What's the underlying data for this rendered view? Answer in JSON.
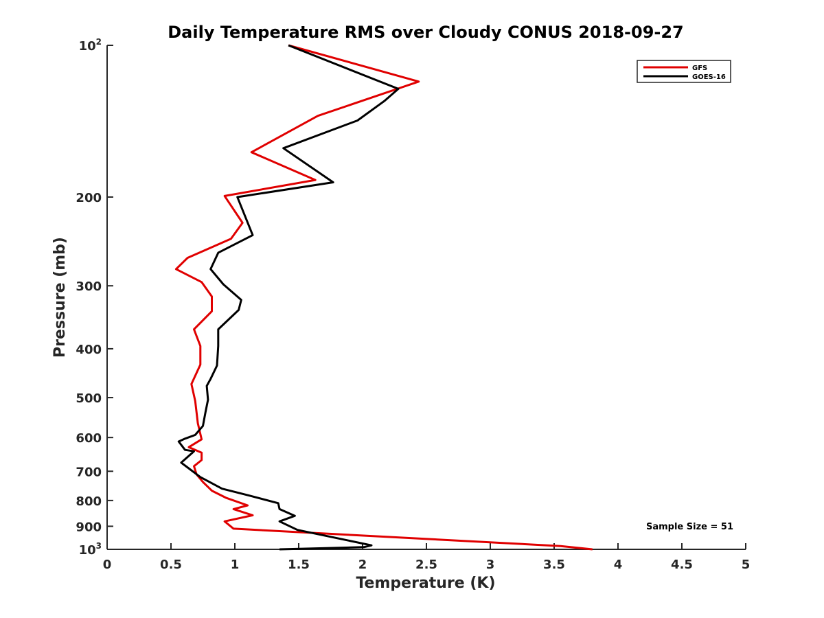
{
  "chart_data": {
    "type": "line",
    "title": "Daily Temperature RMS over Cloudy CONUS 2018-09-27",
    "xlabel": "Temperature (K)",
    "ylabel": "Pressure (mb)",
    "xlim": [
      0,
      5
    ],
    "ylim": [
      100,
      1000
    ],
    "yscale": "log",
    "y_reversed": true,
    "xticks": [
      0,
      0.5,
      1,
      1.5,
      2,
      2.5,
      3,
      3.5,
      4,
      4.5,
      5
    ],
    "xtick_labels": [
      "0",
      "0.5",
      "1",
      "1.5",
      "2",
      "2.5",
      "3",
      "3.5",
      "4",
      "4.5",
      "5"
    ],
    "yticks": [
      {
        "value": 100,
        "base": "10",
        "exp": "2"
      },
      {
        "value": 200,
        "label": "200"
      },
      {
        "value": 300,
        "label": "300"
      },
      {
        "value": 400,
        "label": "400"
      },
      {
        "value": 500,
        "label": "500"
      },
      {
        "value": 600,
        "label": "600"
      },
      {
        "value": 700,
        "label": "700"
      },
      {
        "value": 800,
        "label": "800"
      },
      {
        "value": 900,
        "label": "900"
      },
      {
        "value": 1000,
        "base": "10",
        "exp": "3"
      }
    ],
    "legend_position": "top-right",
    "grid": false,
    "annotation": "Sample Size = 51",
    "series": [
      {
        "name": "GFS",
        "color": "#e00000",
        "x": [
          1.42,
          2.44,
          1.65,
          1.13,
          1.63,
          0.92,
          1.06,
          0.97,
          0.63,
          0.54,
          0.74,
          0.82,
          0.82,
          0.68,
          0.73,
          0.73,
          0.66,
          0.69,
          0.71,
          0.74,
          0.64,
          0.74,
          0.74,
          0.68,
          0.7,
          0.75,
          0.82,
          0.93,
          1.1,
          0.99,
          1.14,
          0.92,
          0.99,
          3.55,
          3.8
        ],
        "y": [
          100,
          118,
          138,
          163,
          185,
          199,
          225,
          242,
          264,
          278,
          295,
          315,
          337,
          366,
          395,
          430,
          470,
          508,
          562,
          605,
          627,
          643,
          665,
          684,
          710,
          735,
          765,
          790,
          818,
          832,
          856,
          880,
          910,
          985,
          1000
        ]
      },
      {
        "name": "GOES-16",
        "color": "#000000",
        "x": [
          1.42,
          2.28,
          2.17,
          1.96,
          1.38,
          1.77,
          1.02,
          1.14,
          0.87,
          0.81,
          0.91,
          1.05,
          1.03,
          0.87,
          0.87,
          0.86,
          0.81,
          0.78,
          0.79,
          0.77,
          0.75,
          0.69,
          0.61,
          0.56,
          0.61,
          0.68,
          0.58,
          0.61,
          0.73,
          0.9,
          1.11,
          1.34,
          1.35,
          1.47,
          1.35,
          1.49,
          2.07,
          2.01,
          1.35
        ],
        "y": [
          100,
          122,
          129,
          141,
          160,
          187,
          200,
          238,
          258,
          278,
          298,
          320,
          335,
          366,
          395,
          432,
          459,
          474,
          505,
          535,
          569,
          593,
          603,
          611,
          635,
          639,
          673,
          682,
          719,
          758,
          782,
          810,
          832,
          858,
          880,
          915,
          982,
          990,
          1000
        ]
      }
    ]
  }
}
